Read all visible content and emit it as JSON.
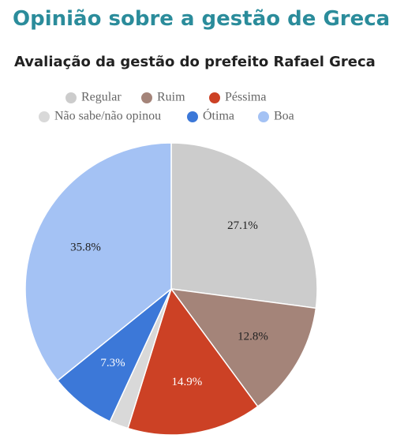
{
  "chart_data": {
    "type": "pie",
    "title": "Opinião sobre a gestão de Greca",
    "subtitle": "Avaliação da gestão do prefeito Rafael Greca",
    "series": [
      {
        "name": "Regular",
        "color": "#cccccc",
        "values": [
          27.1
        ],
        "value_labels": [
          "27.1%"
        ]
      },
      {
        "name": "Ruim",
        "color": "#a48479",
        "values": [
          12.8
        ],
        "value_labels": [
          "12.8%"
        ]
      },
      {
        "name": "Péssima",
        "color": "#cc4125",
        "values": [
          14.9
        ],
        "value_labels": [
          "14.9%"
        ]
      },
      {
        "name": "Não sabe/não opinou",
        "color": "#d9d9d9",
        "values": [
          2.1
        ]
      },
      {
        "name": "Ótima",
        "color": "#3c78d8",
        "values": [
          7.3
        ],
        "value_labels": [
          "7.3%"
        ]
      },
      {
        "name": "Boa",
        "color": "#a4c2f4",
        "values": [
          35.8
        ],
        "value_labels": [
          "35.8%"
        ]
      }
    ]
  }
}
